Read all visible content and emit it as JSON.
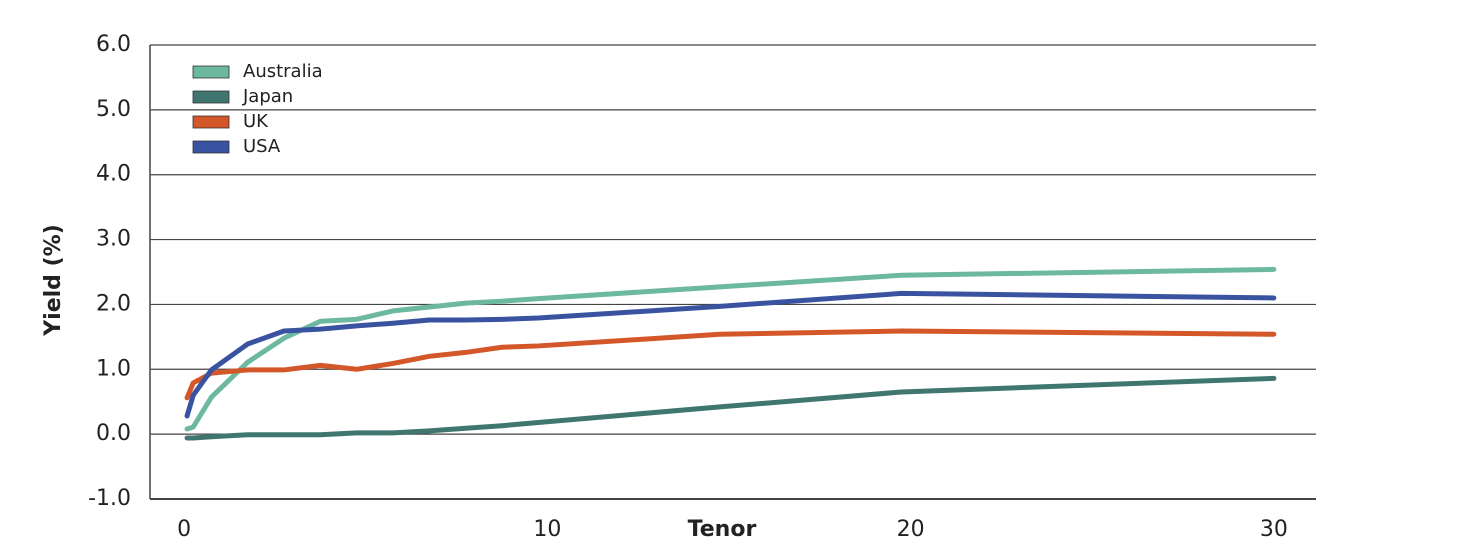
{
  "chart_data": {
    "type": "line",
    "x_label": "Tenor",
    "y_label": "Yield (%)",
    "x": [
      0.08,
      0.25,
      0.75,
      1.75,
      2.75,
      3.75,
      4.75,
      5.75,
      6.75,
      7.75,
      8.75,
      9.75,
      14.75,
      19.75,
      30
    ],
    "series": [
      {
        "name": "Australia",
        "color": "#6db8a0",
        "values": [
          0.08,
          0.11,
          0.57,
          1.11,
          1.48,
          1.74,
          1.77,
          1.9,
          1.96,
          2.02,
          2.05,
          2.09,
          2.27,
          2.45,
          2.54
        ]
      },
      {
        "name": "Japan",
        "color": "#3f7670",
        "values": [
          -0.06,
          -0.06,
          -0.04,
          -0.01,
          -0.01,
          -0.01,
          0.02,
          0.02,
          0.05,
          0.09,
          0.13,
          0.18,
          0.42,
          0.65,
          0.86
        ]
      },
      {
        "name": "UK",
        "color": "#d4572a",
        "values": [
          0.56,
          0.79,
          0.94,
          0.99,
          0.99,
          1.06,
          1.0,
          1.09,
          1.2,
          1.26,
          1.34,
          1.36,
          1.54,
          1.59,
          1.54
        ]
      },
      {
        "name": "USA",
        "color": "#3a53a0",
        "values": [
          0.28,
          0.6,
          0.99,
          1.39,
          1.59,
          1.62,
          1.67,
          1.71,
          1.76,
          1.76,
          1.77,
          1.79,
          1.97,
          2.17,
          2.1
        ]
      }
    ],
    "xlim": [
      -0.94,
      31.16
    ],
    "xticks": [
      0,
      10,
      20,
      30
    ],
    "ylim": [
      -1,
      6
    ],
    "yticks": [
      {
        "value": -1,
        "label": "-1.0"
      },
      {
        "value": 0,
        "label": "0.0"
      },
      {
        "value": 1,
        "label": "1.0"
      },
      {
        "value": 2,
        "label": "2.0"
      },
      {
        "value": 3,
        "label": "3.0"
      },
      {
        "value": 4,
        "label": "4.0"
      },
      {
        "value": 5,
        "label": "5.0"
      },
      {
        "value": 6,
        "label": "6.0"
      }
    ],
    "grid": true,
    "legend": "top-left"
  }
}
